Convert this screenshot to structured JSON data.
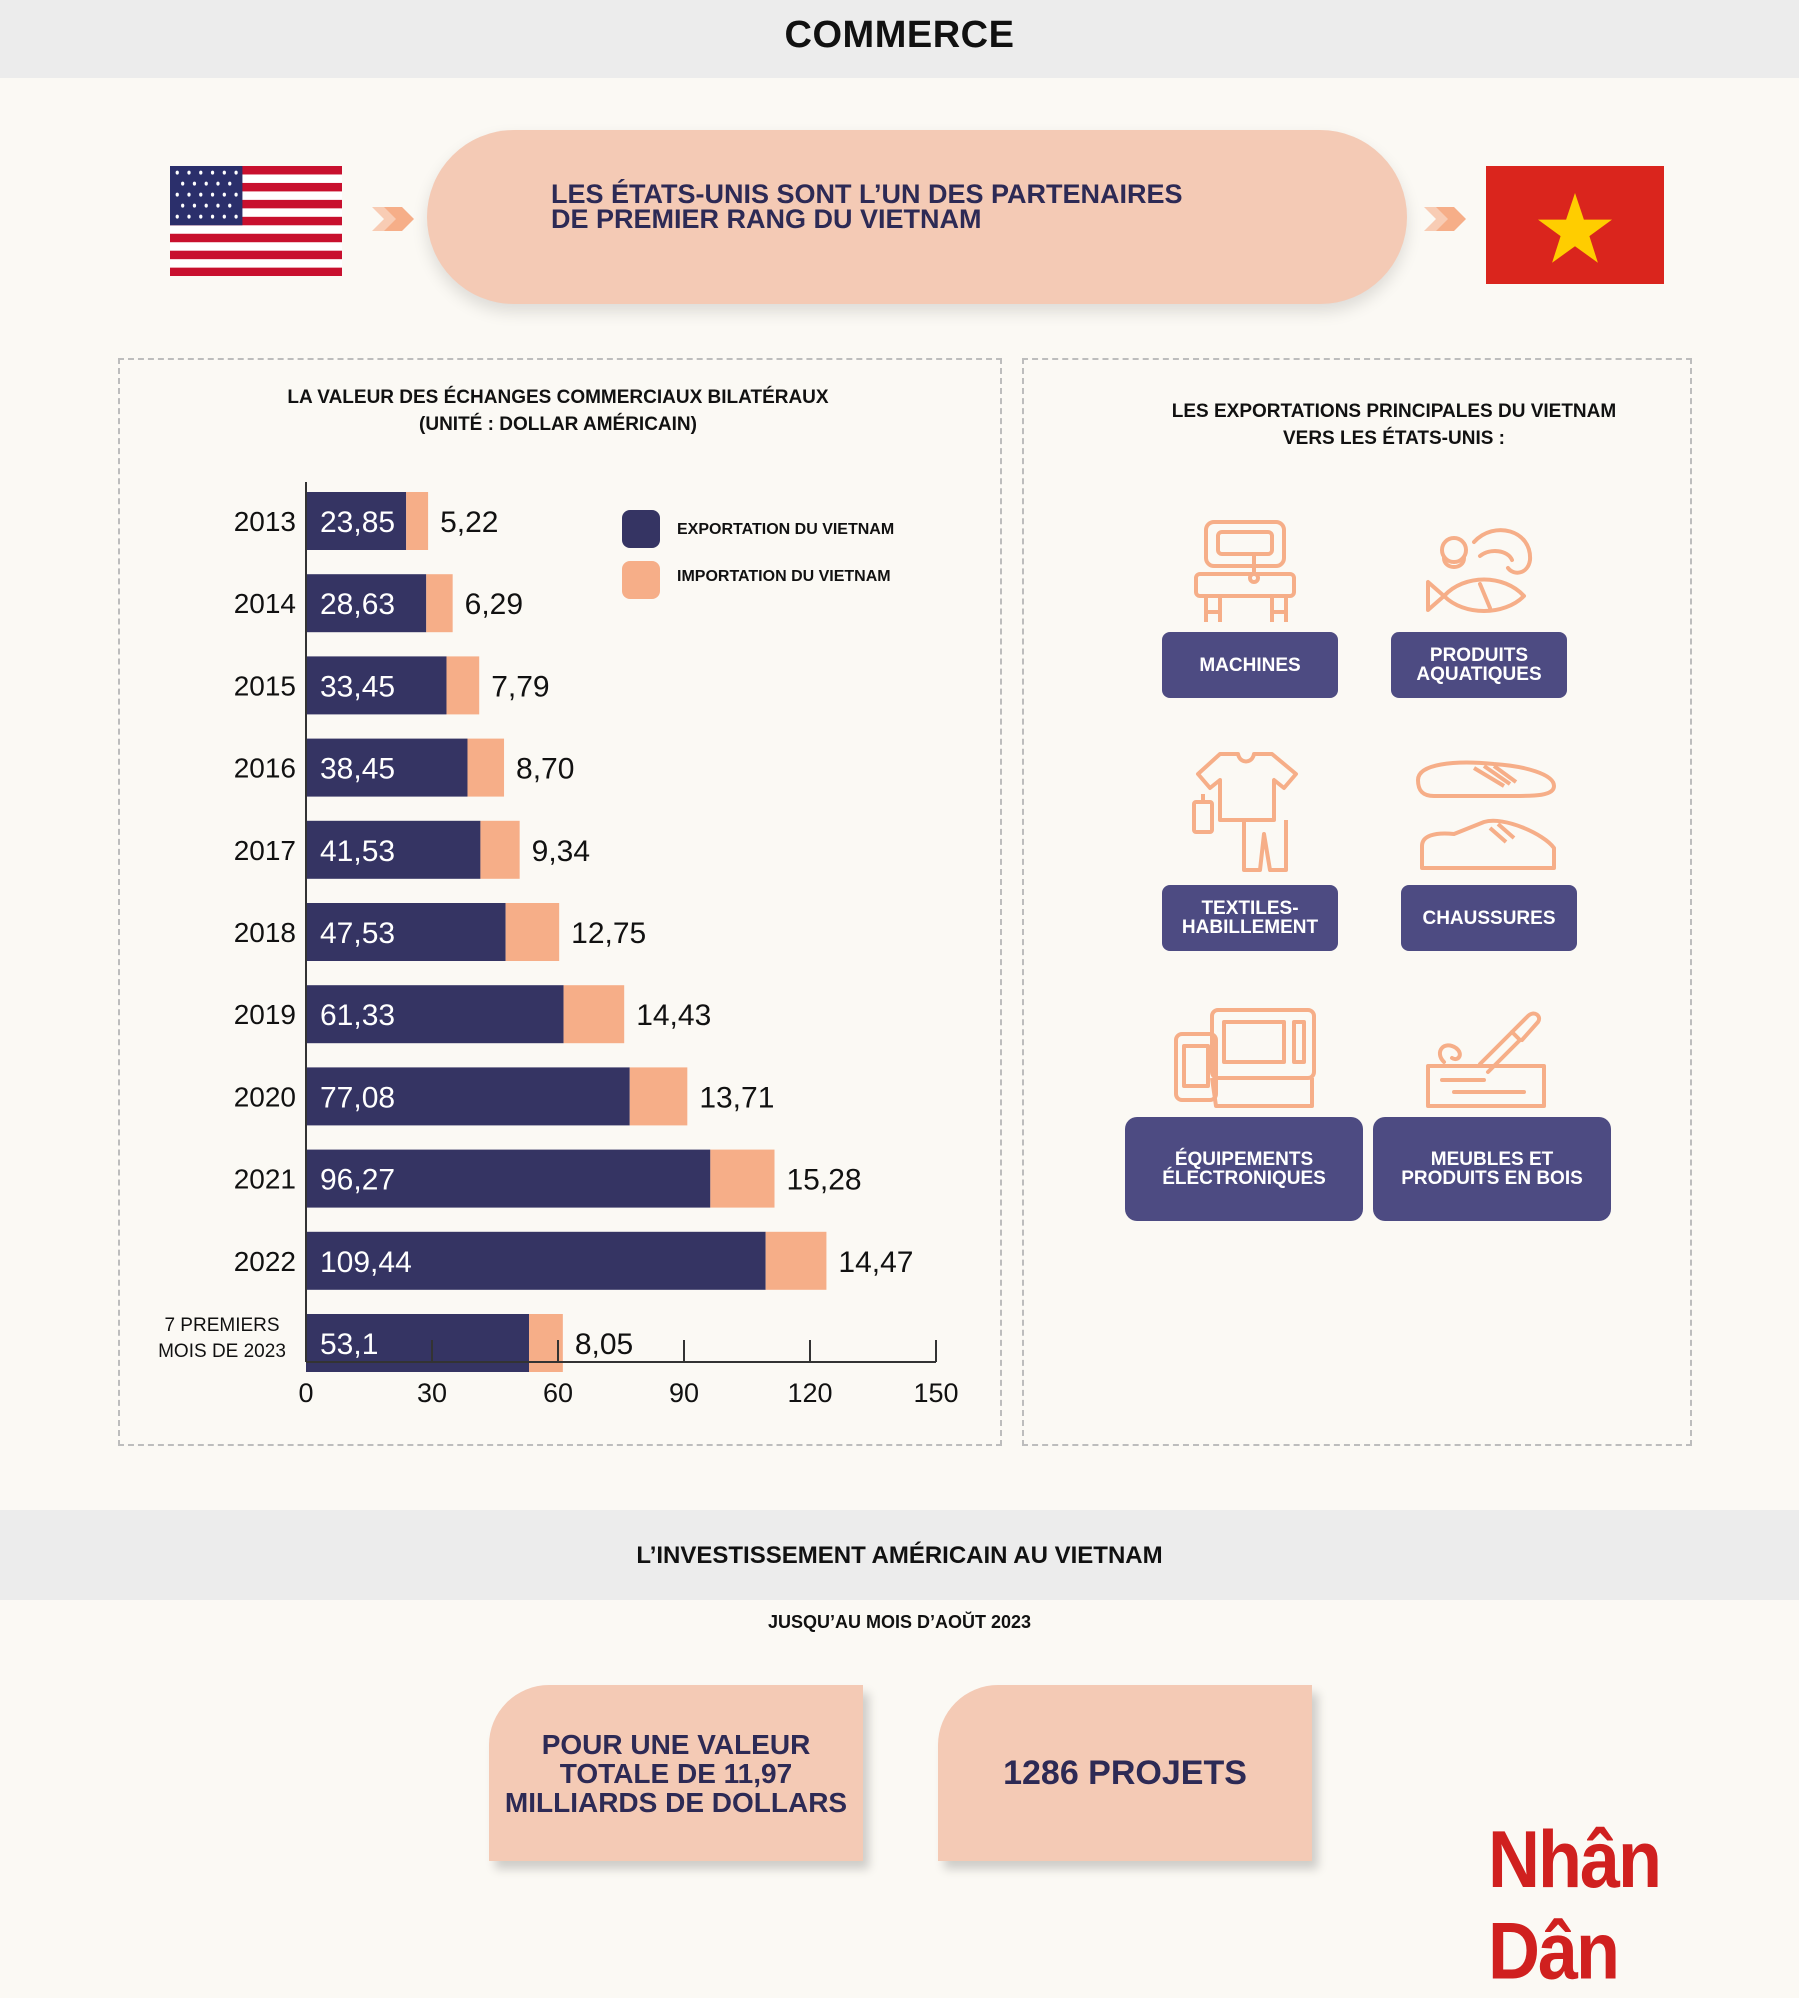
{
  "header": {
    "title": "COMMERCE"
  },
  "hero": {
    "text": "LES ÉTATS-UNIS SONT L’UN DES PARTENAIRES\nDE PREMIER RANG DU VIETNAM"
  },
  "colors": {
    "export": "#353463",
    "import": "#f6ae88",
    "accent": "#4d4b82",
    "pill": "#f4cab5"
  },
  "trade_chart_title": "LA VALEUR DES ÉCHANGES COMMERCIAUX BILATÉRAUX\n(UNITÉ : DOLLAR AMÉRICAIN)",
  "legend": {
    "export": "EXPORTATION DU VIETNAM",
    "import": "IMPORTATION DU VIETNAM"
  },
  "chart_data": {
    "type": "bar",
    "orientation": "horizontal",
    "stacked": true,
    "title": "LA VALEUR DES ÉCHANGES COMMERCIAUX BILATÉRAUX (UNITÉ : DOLLAR AMÉRICAIN)",
    "categories": [
      "2013",
      "2014",
      "2015",
      "2016",
      "2017",
      "2018",
      "2019",
      "2020",
      "2021",
      "2022",
      "7 PREMIERS\nMOIS DE 2023"
    ],
    "series": [
      {
        "name": "EXPORTATION DU VIETNAM",
        "values": [
          23.85,
          28.63,
          33.45,
          38.45,
          41.53,
          47.53,
          61.33,
          77.08,
          96.27,
          109.44,
          53.1
        ],
        "labels": [
          "23,85",
          "28,63",
          "33,45",
          "38,45",
          "41,53",
          "47,53",
          "61,33",
          "77,08",
          "96,27",
          "109,44",
          "53,1"
        ]
      },
      {
        "name": "IMPORTATION DU VIETNAM",
        "values": [
          5.22,
          6.29,
          7.79,
          8.7,
          9.34,
          12.75,
          14.43,
          13.71,
          15.28,
          14.47,
          8.05
        ],
        "labels": [
          "5,22",
          "6,29",
          "7,79",
          "8,70",
          "9,34",
          "12,75",
          "14,43",
          "13,71",
          "15,28",
          "14,47",
          "8,05"
        ]
      }
    ],
    "xlim": [
      0,
      150
    ],
    "xticks": [
      "0",
      "30",
      "60",
      "90",
      "120",
      "150"
    ],
    "legend_position": "top-right",
    "grid": false
  },
  "exports": {
    "title": "LES EXPORTATIONS PRINCIPALES DU VIETNAM\nVERS LES ÉTATS-UNIS :",
    "items": [
      {
        "label": "MACHINES",
        "icon": "sewing-machine-icon"
      },
      {
        "label": "PRODUITS\nAQUATIQUES",
        "icon": "seafood-icon"
      },
      {
        "label": "TEXTILES-\nHABILLEMENT",
        "icon": "clothing-icon"
      },
      {
        "label": "CHAUSSURES",
        "icon": "shoe-icon"
      },
      {
        "label": "ÉQUIPEMENTS\nÉLECTRONIQUES",
        "icon": "electronics-icon"
      },
      {
        "label": "MEUBLES ET\nPRODUITS EN BOIS",
        "icon": "wood-carving-icon"
      }
    ]
  },
  "investment": {
    "title": "L’INVESTISSEMENT AMÉRICAIN AU VIETNAM",
    "subtitle": "JUSQU’AU MOIS D’AOŬT 2023",
    "value_card": "POUR UNE VALEUR\nTOTALE DE 11,97\nMILLIARDS DE DOLLARS",
    "projects_card": "1286 PROJETS"
  },
  "logo": "Nhân Dân"
}
